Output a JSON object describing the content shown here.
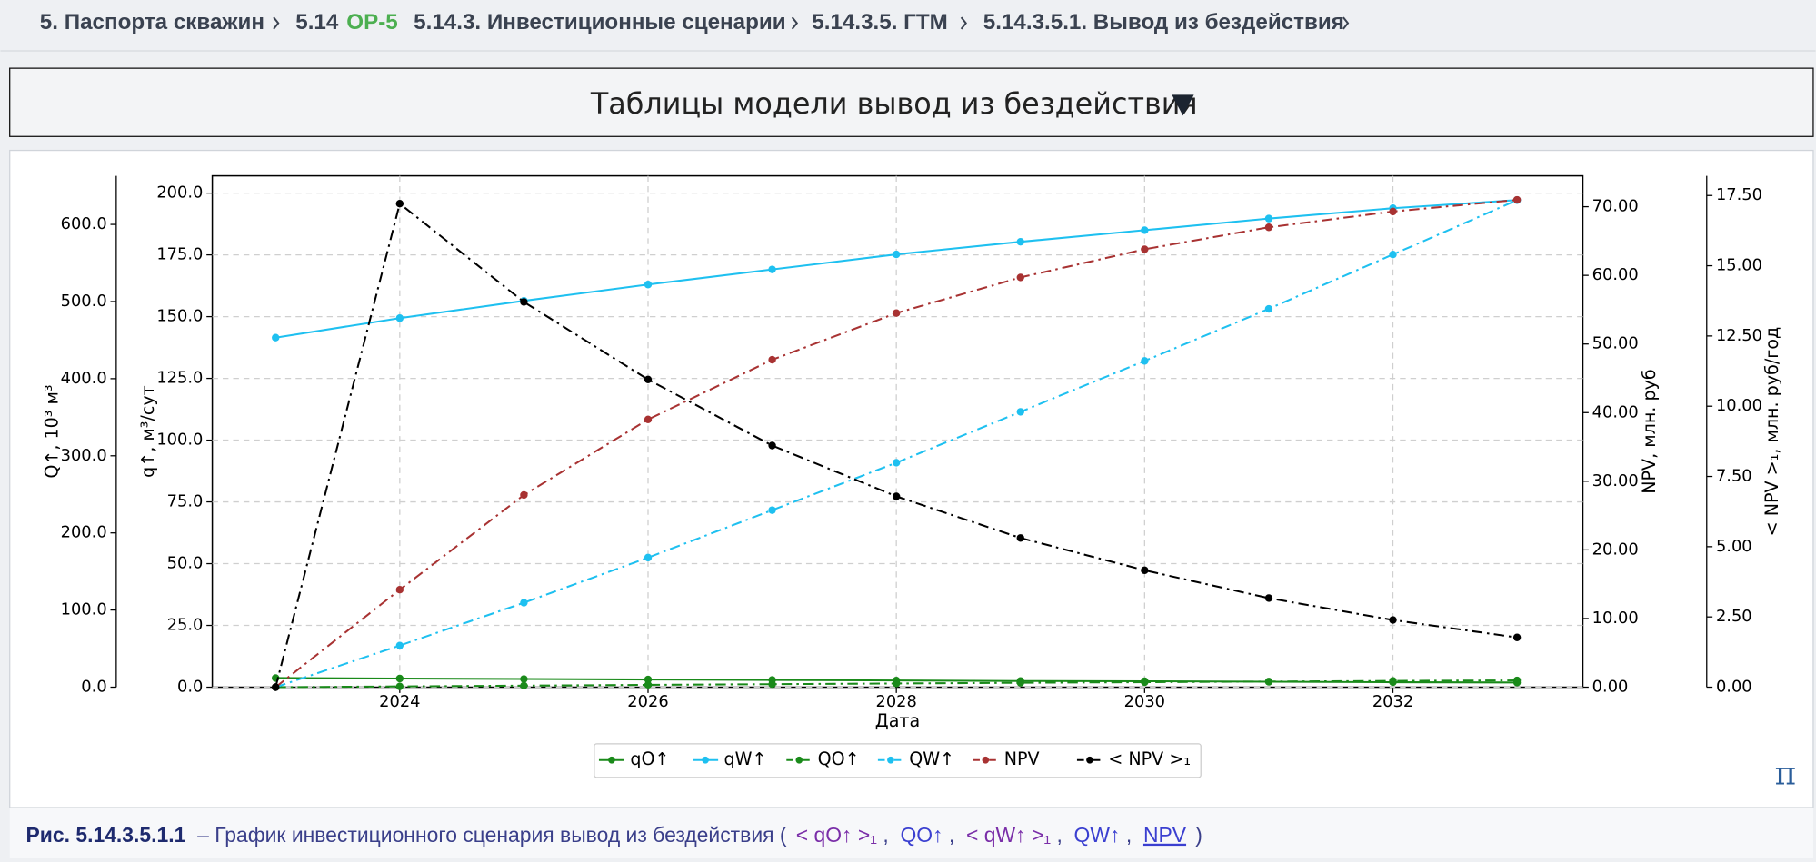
{
  "breadcrumb": [
    "5. Паспорта скважин",
    "5.14",
    "ОР-5",
    "5.14.3. Инвестиционные сценарии",
    "5.14.3.5. ГТМ",
    "5.14.3.5.1. Вывод из бездействия"
  ],
  "header": {
    "title": "Таблицы модели вывод из бездействия"
  },
  "chart_data": {
    "type": "line",
    "xlabel": "Дата",
    "x": [
      2023,
      2024,
      2025,
      2026,
      2027,
      2028,
      2029,
      2030,
      2031,
      2032,
      2033
    ],
    "xlim": [
      2022.49,
      2033.53
    ],
    "xticks": [
      2024,
      2026,
      2028,
      2030,
      2032
    ],
    "grid": true,
    "axes": {
      "y": {
        "label": "q↑, м³/сут",
        "lim": [
          0,
          207
        ],
        "grid": true,
        "ticks": [
          {
            "value": 0,
            "label": "0.0"
          },
          {
            "value": 25,
            "label": "25.0"
          },
          {
            "value": 50,
            "label": "50.0"
          },
          {
            "value": 75,
            "label": "75.0"
          },
          {
            "value": 100,
            "label": "100.0"
          },
          {
            "value": 125,
            "label": "125.0"
          },
          {
            "value": 150,
            "label": "150.0"
          },
          {
            "value": 175,
            "label": "175.0"
          },
          {
            "value": 200,
            "label": "200.0"
          }
        ]
      },
      "y3": {
        "label": "Q↑, 10³ м³",
        "lim": [
          0,
          663
        ],
        "grid": false,
        "ticks": [
          {
            "value": 0,
            "label": "0.0"
          },
          {
            "value": 100,
            "label": "100.0"
          },
          {
            "value": 200,
            "label": "200.0"
          },
          {
            "value": 300,
            "label": "300.0"
          },
          {
            "value": 400,
            "label": "400.0"
          },
          {
            "value": 500,
            "label": "500.0"
          },
          {
            "value": 600,
            "label": "600.0"
          }
        ]
      },
      "y2": {
        "label": "NPV, млн. руб",
        "lim": [
          0,
          74.5
        ],
        "grid": false,
        "ticks": [
          {
            "value": 0,
            "label": "0.00"
          },
          {
            "value": 10,
            "label": "10.00"
          },
          {
            "value": 20,
            "label": "20.00"
          },
          {
            "value": 30,
            "label": "30.00"
          },
          {
            "value": 40,
            "label": "40.00"
          },
          {
            "value": 50,
            "label": "50.00"
          },
          {
            "value": 60,
            "label": "60.00"
          },
          {
            "value": 70,
            "label": "70.00"
          }
        ]
      },
      "y4": {
        "label": "< NPV >₁, млн. руб/год",
        "lim": [
          0,
          18.2
        ],
        "grid": false,
        "ticks": [
          {
            "value": 0,
            "label": "0.00"
          },
          {
            "value": 2.5,
            "label": "2.50"
          },
          {
            "value": 5,
            "label": "5.00"
          },
          {
            "value": 7.5,
            "label": "7.50"
          },
          {
            "value": 10,
            "label": "10.00"
          },
          {
            "value": 12.5,
            "label": "12.50"
          },
          {
            "value": 15,
            "label": "15.00"
          },
          {
            "value": 17.5,
            "label": "17.50"
          }
        ]
      }
    },
    "series": [
      {
        "name": "qO↑",
        "color": "#1a8a1a",
        "linestyle": "solid",
        "axis": "y",
        "values": [
          3.7,
          3.5,
          3.3,
          3.1,
          2.9,
          2.7,
          2.5,
          2.4,
          2.2,
          2.0,
          1.9
        ]
      },
      {
        "name": "qW↑",
        "color": "#1ec0f0",
        "linestyle": "solid",
        "axis": "y",
        "values": [
          141.5,
          149.4,
          156.4,
          163,
          169.1,
          175.2,
          180.3,
          185,
          189.7,
          193.9,
          197.2
        ]
      },
      {
        "name": "QO↑",
        "color": "#1a8a1a",
        "linestyle": "dashdot",
        "axis": "y3",
        "values": [
          0,
          1,
          2,
          3,
          3.9,
          4.8,
          5.7,
          6.5,
          7.3,
          8.1,
          8.8
        ]
      },
      {
        "name": "QW↑",
        "color": "#1ec0f0",
        "linestyle": "dashdot",
        "axis": "y3",
        "values": [
          0,
          54,
          109.5,
          168,
          229.5,
          291,
          357,
          423,
          490.5,
          561,
          631.5
        ]
      },
      {
        "name": "NPV",
        "color": "#a83232",
        "linestyle": "dashdot",
        "axis": "y2",
        "values": [
          0,
          14.2,
          28,
          39,
          47.7,
          54.5,
          59.7,
          63.8,
          67,
          69.3,
          71
        ]
      },
      {
        "name": "< NPV >₁",
        "color": "#000000",
        "linestyle": "dashdot",
        "axis": "y4",
        "values": [
          0,
          17.21,
          13.71,
          10.95,
          8.6,
          6.79,
          5.31,
          4.16,
          3.17,
          2.39,
          1.77
        ]
      }
    ]
  },
  "pi_icon": "π",
  "caption": {
    "label": "Рис. 5.14.3.5.1.1",
    "text": "– График инвестиционного сценария вывод из бездействия (",
    "links": [
      "< qO↑ >₁",
      "QO↑",
      "< qW↑ >₁",
      "QW↑",
      "NPV"
    ],
    "separator": ",",
    "close": ")"
  }
}
